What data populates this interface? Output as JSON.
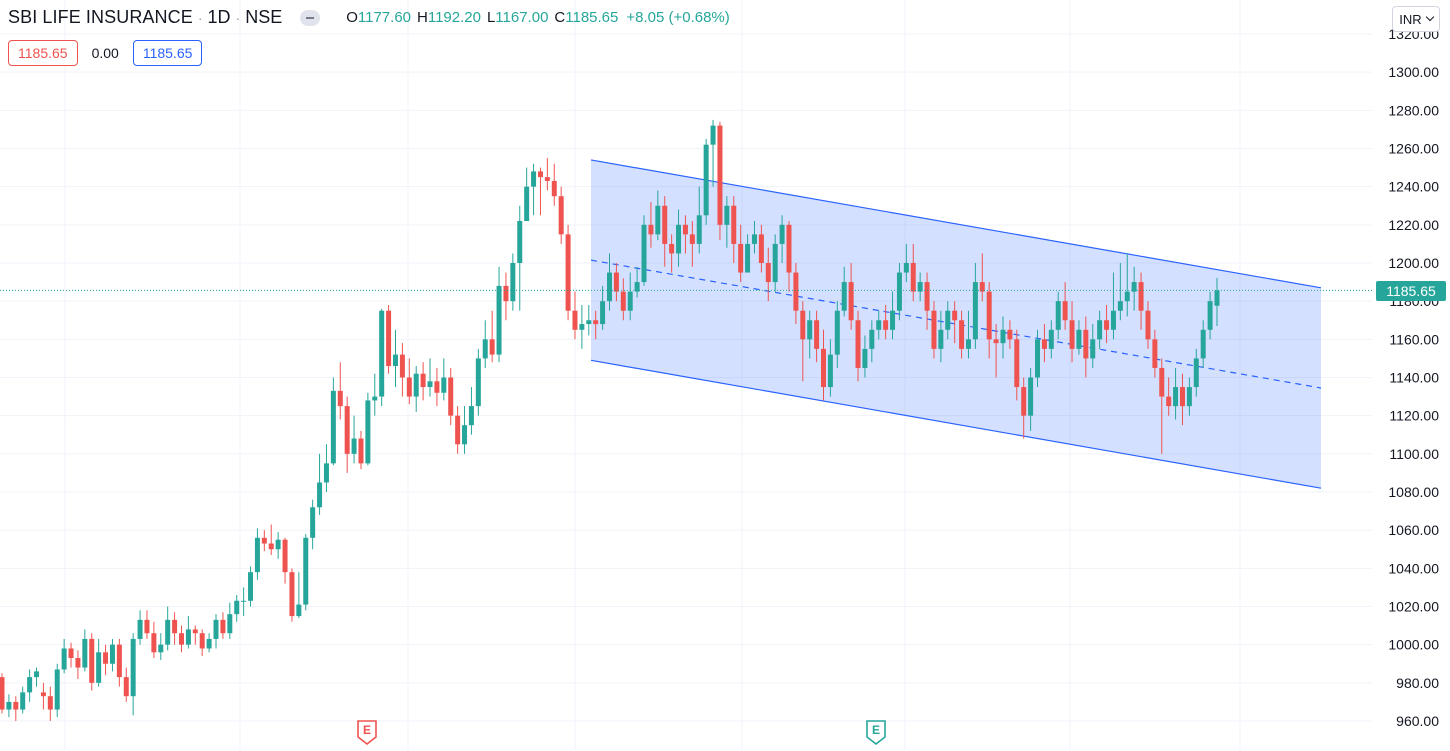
{
  "header": {
    "symbol": "SBI LIFE INSURANCE",
    "sep1": "·",
    "interval": "1D",
    "sep2": "·",
    "exchange": "NSE",
    "open_k": "O",
    "open_v": "1177.60",
    "high_k": "H",
    "high_v": "1192.20",
    "low_k": "L",
    "low_v": "1167.00",
    "close_k": "C",
    "close_v": "1185.65",
    "change": "+8.05 (+0.68%)"
  },
  "order_boxes": {
    "sell": "1185.65",
    "spread": "0.00",
    "buy": "1185.65"
  },
  "currency": "INR",
  "last_price_label": "1185.65",
  "earnings_markers": [
    {
      "label": "E",
      "color": "#ef5350"
    },
    {
      "label": "E",
      "color": "#26a69a"
    }
  ],
  "colors": {
    "up": "#26a69a",
    "down": "#ef5350",
    "channel": "#2962ff",
    "channel_fill": "#2962ff"
  },
  "chart_data": {
    "type": "candlestick",
    "title": "SBI LIFE INSURANCE · 1D · NSE",
    "ylim": [
      955,
      1325
    ],
    "y_ticks": [
      960,
      980,
      1000,
      1020,
      1040,
      1060,
      1080,
      1100,
      1120,
      1140,
      1160,
      1180,
      1200,
      1220,
      1240,
      1260,
      1280,
      1300,
      1320
    ],
    "y_tick_labels": [
      "960.00",
      "980.00",
      "1000.00",
      "1020.00",
      "1040.00",
      "1060.00",
      "1080.00",
      "1100.00",
      "1120.00",
      "1140.00",
      "1160.00",
      "1180.00",
      "1200.00",
      "1220.00",
      "1240.00",
      "1260.00",
      "1280.00",
      "1300.00",
      "1320.00"
    ],
    "grid": true,
    "last_price": 1185.65,
    "candles": [
      [
        983,
        966,
        985,
        964
      ],
      [
        966,
        970,
        974,
        962
      ],
      [
        970,
        966,
        973,
        960
      ],
      [
        966,
        975,
        978,
        964
      ],
      [
        975,
        983,
        987,
        970
      ],
      [
        983,
        986,
        988,
        978
      ],
      [
        975,
        973,
        980,
        966
      ],
      [
        973,
        966,
        978,
        960
      ],
      [
        966,
        987,
        990,
        962
      ],
      [
        987,
        998,
        1003,
        985
      ],
      [
        998,
        993,
        1001,
        988
      ],
      [
        993,
        988,
        997,
        982
      ],
      [
        988,
        1003,
        1008,
        986
      ],
      [
        1003,
        980,
        1006,
        976
      ],
      [
        980,
        996,
        1003,
        978
      ],
      [
        996,
        990,
        1000,
        984
      ],
      [
        990,
        1000,
        1003,
        986
      ],
      [
        1000,
        983,
        1003,
        978
      ],
      [
        983,
        973,
        988,
        970
      ],
      [
        973,
        1003,
        1006,
        963
      ],
      [
        1003,
        1013,
        1018,
        1000
      ],
      [
        1013,
        1006,
        1018,
        1003
      ],
      [
        1006,
        996,
        1012,
        993
      ],
      [
        996,
        1000,
        1006,
        992
      ],
      [
        1000,
        1013,
        1020,
        997
      ],
      [
        1013,
        1006,
        1017,
        1000
      ],
      [
        1006,
        1000,
        1010,
        996
      ],
      [
        1000,
        1008,
        1015,
        998
      ],
      [
        1008,
        1006,
        1010,
        1000
      ],
      [
        1006,
        998,
        1008,
        994
      ],
      [
        998,
        1003,
        1006,
        996
      ],
      [
        1003,
        1013,
        1016,
        998
      ],
      [
        1013,
        1006,
        1017,
        1003
      ],
      [
        1006,
        1016,
        1022,
        1003
      ],
      [
        1016,
        1023,
        1026,
        1012
      ],
      [
        1023,
        1023,
        1030,
        1015
      ],
      [
        1023,
        1038,
        1041,
        1020
      ],
      [
        1038,
        1056,
        1061,
        1034
      ],
      [
        1056,
        1053,
        1060,
        1049
      ],
      [
        1053,
        1050,
        1063,
        1047
      ],
      [
        1050,
        1055,
        1059,
        1045
      ],
      [
        1055,
        1038,
        1056,
        1032
      ],
      [
        1038,
        1015,
        1040,
        1012
      ],
      [
        1015,
        1021,
        1038,
        1014
      ],
      [
        1021,
        1056,
        1058,
        1018
      ],
      [
        1056,
        1072,
        1076,
        1050
      ],
      [
        1072,
        1085,
        1100,
        1068
      ],
      [
        1085,
        1095,
        1105,
        1080
      ],
      [
        1095,
        1133,
        1140,
        1094
      ],
      [
        1133,
        1125,
        1148,
        1118
      ],
      [
        1125,
        1100,
        1130,
        1090
      ],
      [
        1100,
        1108,
        1120,
        1095
      ],
      [
        1108,
        1095,
        1112,
        1092
      ],
      [
        1095,
        1128,
        1132,
        1094
      ],
      [
        1128,
        1130,
        1142,
        1120
      ],
      [
        1130,
        1175,
        1176,
        1125
      ],
      [
        1175,
        1146,
        1178,
        1142
      ],
      [
        1146,
        1152,
        1165,
        1135
      ],
      [
        1152,
        1140,
        1158,
        1130
      ],
      [
        1140,
        1130,
        1150,
        1126
      ],
      [
        1130,
        1142,
        1146,
        1122
      ],
      [
        1142,
        1135,
        1148,
        1128
      ],
      [
        1135,
        1138,
        1150,
        1130
      ],
      [
        1138,
        1132,
        1145,
        1125
      ],
      [
        1132,
        1140,
        1150,
        1128
      ],
      [
        1140,
        1120,
        1145,
        1115
      ],
      [
        1120,
        1105,
        1125,
        1100
      ],
      [
        1105,
        1115,
        1125,
        1100
      ],
      [
        1115,
        1125,
        1135,
        1110
      ],
      [
        1125,
        1150,
        1155,
        1120
      ],
      [
        1150,
        1160,
        1170,
        1145
      ],
      [
        1160,
        1152,
        1175,
        1148
      ],
      [
        1152,
        1188,
        1198,
        1148
      ],
      [
        1188,
        1180,
        1195,
        1170
      ],
      [
        1180,
        1200,
        1205,
        1175
      ],
      [
        1200,
        1222,
        1230,
        1175
      ],
      [
        1222,
        1240,
        1250,
        1230
      ],
      [
        1240,
        1248,
        1252,
        1225
      ],
      [
        1248,
        1245,
        1250,
        1225
      ],
      [
        1245,
        1243,
        1255,
        1238
      ],
      [
        1243,
        1235,
        1252,
        1230
      ],
      [
        1235,
        1215,
        1240,
        1210
      ],
      [
        1215,
        1175,
        1220,
        1170
      ],
      [
        1175,
        1165,
        1185,
        1160
      ],
      [
        1165,
        1168,
        1178,
        1155
      ],
      [
        1168,
        1170,
        1178,
        1162
      ],
      [
        1170,
        1168,
        1175,
        1160
      ],
      [
        1168,
        1180,
        1188,
        1165
      ],
      [
        1180,
        1195,
        1205,
        1175
      ],
      [
        1195,
        1185,
        1200,
        1180
      ],
      [
        1185,
        1175,
        1192,
        1170
      ],
      [
        1175,
        1185,
        1195,
        1170
      ],
      [
        1185,
        1190,
        1198,
        1182
      ],
      [
        1190,
        1220,
        1225,
        1188
      ],
      [
        1220,
        1215,
        1232,
        1208
      ],
      [
        1215,
        1230,
        1238,
        1212
      ],
      [
        1230,
        1210,
        1235,
        1198
      ],
      [
        1210,
        1205,
        1215,
        1195
      ],
      [
        1205,
        1220,
        1228,
        1198
      ],
      [
        1220,
        1215,
        1225,
        1205
      ],
      [
        1215,
        1210,
        1222,
        1198
      ],
      [
        1210,
        1225,
        1240,
        1205
      ],
      [
        1225,
        1262,
        1265,
        1220
      ],
      [
        1262,
        1272,
        1275,
        1240
      ],
      [
        1272,
        1220,
        1274,
        1212
      ],
      [
        1220,
        1230,
        1235,
        1208
      ],
      [
        1230,
        1210,
        1235,
        1200
      ],
      [
        1210,
        1195,
        1220,
        1190
      ],
      [
        1195,
        1210,
        1215,
        1200
      ],
      [
        1210,
        1215,
        1222,
        1205
      ],
      [
        1215,
        1200,
        1220,
        1195
      ],
      [
        1200,
        1190,
        1208,
        1180
      ],
      [
        1190,
        1210,
        1215,
        1185
      ],
      [
        1210,
        1220,
        1225,
        1200
      ],
      [
        1220,
        1195,
        1222,
        1185
      ],
      [
        1195,
        1175,
        1200,
        1168
      ],
      [
        1175,
        1160,
        1180,
        1138
      ],
      [
        1160,
        1170,
        1175,
        1150
      ],
      [
        1170,
        1155,
        1175,
        1148
      ],
      [
        1155,
        1135,
        1165,
        1128
      ],
      [
        1135,
        1152,
        1160,
        1130
      ],
      [
        1152,
        1175,
        1180,
        1145
      ],
      [
        1175,
        1190,
        1198,
        1172
      ],
      [
        1190,
        1170,
        1200,
        1165
      ],
      [
        1170,
        1145,
        1175,
        1138
      ],
      [
        1145,
        1155,
        1162,
        1140
      ],
      [
        1155,
        1165,
        1170,
        1148
      ],
      [
        1165,
        1170,
        1175,
        1160
      ],
      [
        1170,
        1165,
        1178,
        1160
      ],
      [
        1165,
        1175,
        1185,
        1160
      ],
      [
        1175,
        1195,
        1200,
        1170
      ],
      [
        1195,
        1200,
        1210,
        1190
      ],
      [
        1200,
        1185,
        1210,
        1180
      ],
      [
        1185,
        1190,
        1195,
        1180
      ],
      [
        1190,
        1175,
        1195,
        1165
      ],
      [
        1175,
        1155,
        1180,
        1150
      ],
      [
        1155,
        1165,
        1175,
        1148
      ],
      [
        1165,
        1175,
        1180,
        1160
      ],
      [
        1175,
        1170,
        1180,
        1158
      ],
      [
        1170,
        1155,
        1175,
        1150
      ],
      [
        1155,
        1160,
        1175,
        1150
      ],
      [
        1160,
        1190,
        1200,
        1155
      ],
      [
        1190,
        1185,
        1205,
        1180
      ],
      [
        1185,
        1160,
        1190,
        1150
      ],
      [
        1160,
        1158,
        1168,
        1140
      ],
      [
        1158,
        1165,
        1172,
        1150
      ],
      [
        1165,
        1160,
        1170,
        1155
      ],
      [
        1160,
        1135,
        1165,
        1128
      ],
      [
        1135,
        1120,
        1140,
        1108
      ],
      [
        1120,
        1140,
        1145,
        1112
      ],
      [
        1140,
        1160,
        1165,
        1135
      ],
      [
        1160,
        1155,
        1168,
        1148
      ],
      [
        1155,
        1165,
        1170,
        1150
      ],
      [
        1165,
        1180,
        1185,
        1160
      ],
      [
        1180,
        1170,
        1190,
        1165
      ],
      [
        1170,
        1155,
        1180,
        1148
      ],
      [
        1155,
        1165,
        1170,
        1152
      ],
      [
        1165,
        1150,
        1172,
        1140
      ],
      [
        1150,
        1160,
        1168,
        1145
      ],
      [
        1160,
        1170,
        1175,
        1155
      ],
      [
        1170,
        1165,
        1178,
        1158
      ],
      [
        1165,
        1175,
        1195,
        1160
      ],
      [
        1175,
        1180,
        1200,
        1170
      ],
      [
        1180,
        1185,
        1205,
        1172
      ],
      [
        1185,
        1190,
        1198,
        1175
      ],
      [
        1190,
        1175,
        1195,
        1165
      ],
      [
        1175,
        1160,
        1180,
        1155
      ],
      [
        1160,
        1145,
        1165,
        1140
      ],
      [
        1145,
        1130,
        1150,
        1100
      ],
      [
        1130,
        1125,
        1140,
        1120
      ],
      [
        1125,
        1135,
        1145,
        1118
      ],
      [
        1135,
        1125,
        1142,
        1115
      ],
      [
        1125,
        1135,
        1140,
        1120
      ],
      [
        1135,
        1150,
        1155,
        1130
      ],
      [
        1150,
        1165,
        1170,
        1145
      ],
      [
        1165,
        1180,
        1185,
        1160
      ],
      [
        1177.6,
        1185.65,
        1192.2,
        1167
      ]
    ],
    "channel": {
      "upper": {
        "from": [
          0,
          1254
        ],
        "to": [
          1,
          1187
        ]
      },
      "lower": {
        "from": [
          0,
          1149
        ],
        "to": [
          1,
          1082
        ]
      },
      "mid": {
        "from": [
          0,
          1201.5
        ],
        "to": [
          1,
          1134.5
        ]
      }
    }
  }
}
